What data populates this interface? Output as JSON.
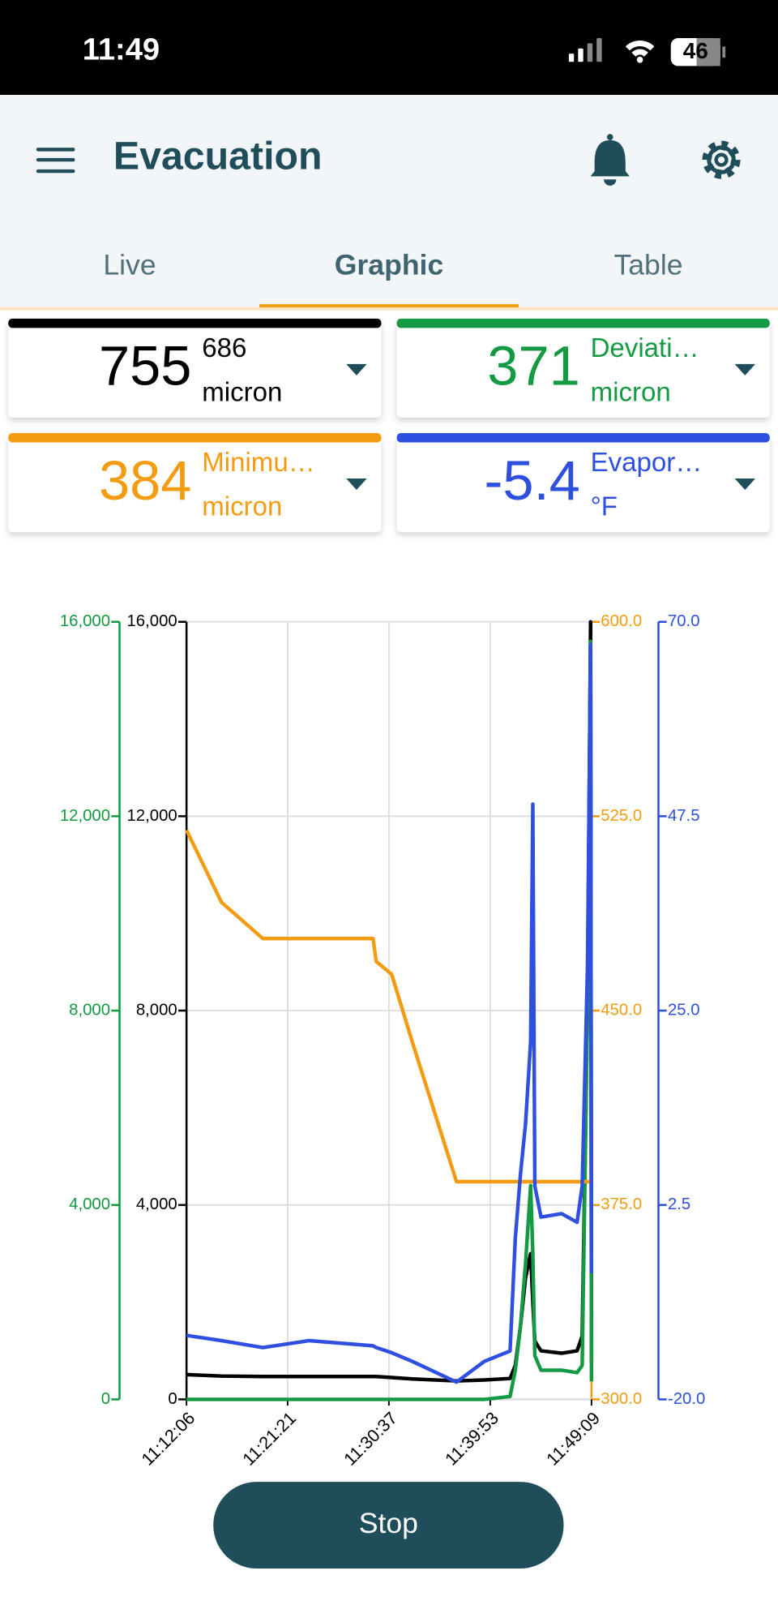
{
  "status_bar": {
    "time": "11:49",
    "battery": "46"
  },
  "header": {
    "title": "Evacuation"
  },
  "tabs": {
    "items": [
      "Live",
      "Graphic",
      "Table"
    ],
    "active": 1
  },
  "cards": [
    {
      "value": 755,
      "label": "686",
      "unit": "micron",
      "color": "#000000"
    },
    {
      "value": 371,
      "label": "Deviati…",
      "unit": "micron",
      "color": "#139a43"
    },
    {
      "value": 384,
      "label": "Minimu…",
      "unit": "micron",
      "color": "#f39c12"
    },
    {
      "value": -5.4,
      "label": "Evapor…",
      "unit": "°F",
      "color": "#2f4fe0"
    }
  ],
  "chart_data": {
    "type": "line",
    "x": [
      "11:12:06",
      "11:15:18",
      "11:19:05",
      "11:23:19",
      "11:29:10",
      "11:29:27",
      "11:30:52",
      "11:32:45",
      "11:36:48",
      "11:39:21",
      "11:41:42",
      "11:42:11",
      "11:42:39",
      "11:43:07",
      "11:43:35",
      "11:43:47",
      "11:43:58",
      "11:44:32",
      "11:46:25",
      "11:47:50",
      "11:48:18",
      "11:48:47",
      "11:49:04",
      "11:49:09"
    ],
    "xlim": [
      "11:12:06",
      "11:49:09"
    ],
    "xticks": [
      "11:12:06",
      "11:21:21",
      "11:30:37",
      "11:39:53",
      "11:49:09"
    ],
    "ylim": [
      0,
      16000
    ],
    "yticks": [
      0,
      {
        "value": 4000,
        "label": "4,000"
      },
      {
        "value": 8000,
        "label": "8,000"
      },
      {
        "value": 12000,
        "label": "12,000"
      },
      {
        "value": 16000,
        "label": "16,000"
      }
    ],
    "y2lim": [
      300,
      600
    ],
    "y2ticks": [
      {
        "value": 300,
        "label": "300.0"
      },
      {
        "value": 375,
        "label": "375.0"
      },
      {
        "value": 450,
        "label": "450.0"
      },
      {
        "value": 525,
        "label": "525.0"
      },
      {
        "value": 600,
        "label": "600.0"
      }
    ],
    "y3lim": [
      0,
      16000
    ],
    "y3ticks": [
      0,
      {
        "value": 4000,
        "label": "4,000"
      },
      {
        "value": 8000,
        "label": "8,000"
      },
      {
        "value": 12000,
        "label": "12,000"
      },
      {
        "value": 16000,
        "label": "16,000"
      }
    ],
    "y4lim": [
      -20,
      70
    ],
    "y4ticks": [
      {
        "value": -20,
        "label": "-20.0"
      },
      2.5,
      {
        "value": 25,
        "label": "25.0"
      },
      47.5,
      {
        "value": 70,
        "label": "70.0"
      }
    ],
    "grid": true,
    "series": [
      {
        "color": "#000000",
        "axis": "y",
        "values": [
          510,
          480,
          470,
          470,
          470,
          470,
          450,
          420,
          380,
          400,
          430,
          700,
          1500,
          2500,
          3000,
          2000,
          1200,
          1000,
          950,
          1000,
          1300,
          8000,
          16000,
          755
        ]
      },
      {
        "color": "#139a43",
        "axis": "y3",
        "values": [
          0,
          0,
          0,
          0,
          0,
          0,
          0,
          0,
          0,
          0,
          60,
          600,
          1500,
          2800,
          4400,
          3000,
          900,
          600,
          600,
          550,
          700,
          8000,
          15600,
          371
        ]
      },
      {
        "color": "#f39c12",
        "axis": "y2",
        "values": [
          519.6,
          491.8,
          477.8,
          477.8,
          477.8,
          469,
          464,
          438,
          384,
          384,
          384,
          384,
          384,
          384,
          384,
          384,
          384,
          384,
          384,
          384,
          384,
          384,
          384,
          384
        ]
      },
      {
        "color": "#2f4fe0",
        "axis": "y4",
        "values": [
          -12.6,
          -13.2,
          -14.0,
          -13.2,
          -13.8,
          -14.0,
          -14.6,
          -15.6,
          -18.0,
          -15.6,
          -14.4,
          -1.3,
          6,
          11.9,
          21.4,
          48.9,
          4.7,
          1.1,
          1.5,
          0.5,
          4.7,
          30,
          67.4,
          -5.4
        ]
      }
    ]
  },
  "button": {
    "label": "Stop"
  }
}
